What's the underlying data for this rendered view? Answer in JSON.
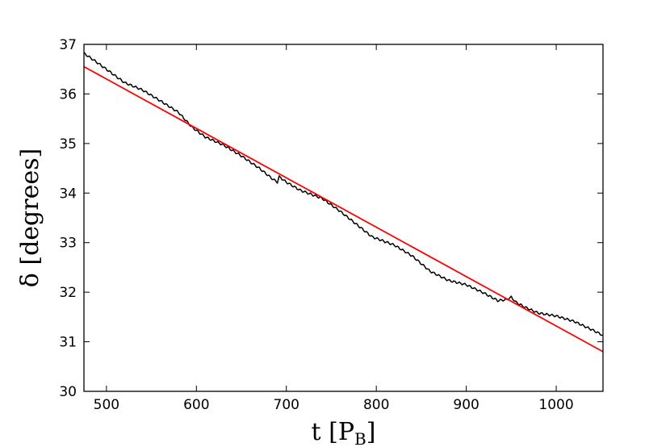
{
  "chart_data": {
    "type": "line",
    "xlabel": "t [P",
    "xlabel_sub": "B",
    "xlabel_close": "]",
    "ylabel": "δ [degrees]",
    "xlim": [
      475,
      1052
    ],
    "ylim": [
      30,
      37
    ],
    "xticks": [
      500,
      600,
      700,
      800,
      900,
      1000
    ],
    "yticks": [
      30,
      31,
      32,
      33,
      34,
      35,
      36,
      37
    ],
    "grid": false,
    "series": [
      {
        "color": "#000000",
        "style": "measured",
        "x": [
          475,
          490,
          505,
          520,
          540,
          560,
          580,
          595,
          610,
          630,
          650,
          670,
          685,
          690,
          692,
          700,
          715,
          740,
          760,
          780,
          795,
          820,
          840,
          860,
          880,
          900,
          920,
          935,
          945,
          950,
          955,
          965,
          980,
          1000,
          1020,
          1040,
          1052
        ],
        "y": [
          36.82,
          36.63,
          36.43,
          36.23,
          36.08,
          35.86,
          35.63,
          35.33,
          35.13,
          34.97,
          34.75,
          34.5,
          34.28,
          34.22,
          34.33,
          34.22,
          34.06,
          33.89,
          33.63,
          33.34,
          33.12,
          32.95,
          32.73,
          32.42,
          32.24,
          32.15,
          31.98,
          31.83,
          31.85,
          31.9,
          31.8,
          31.7,
          31.58,
          31.52,
          31.41,
          31.24,
          31.13
        ]
      },
      {
        "color": "#ff0000",
        "style": "fit",
        "x": [
          475,
          1052
        ],
        "y": [
          36.55,
          30.8
        ]
      }
    ]
  }
}
